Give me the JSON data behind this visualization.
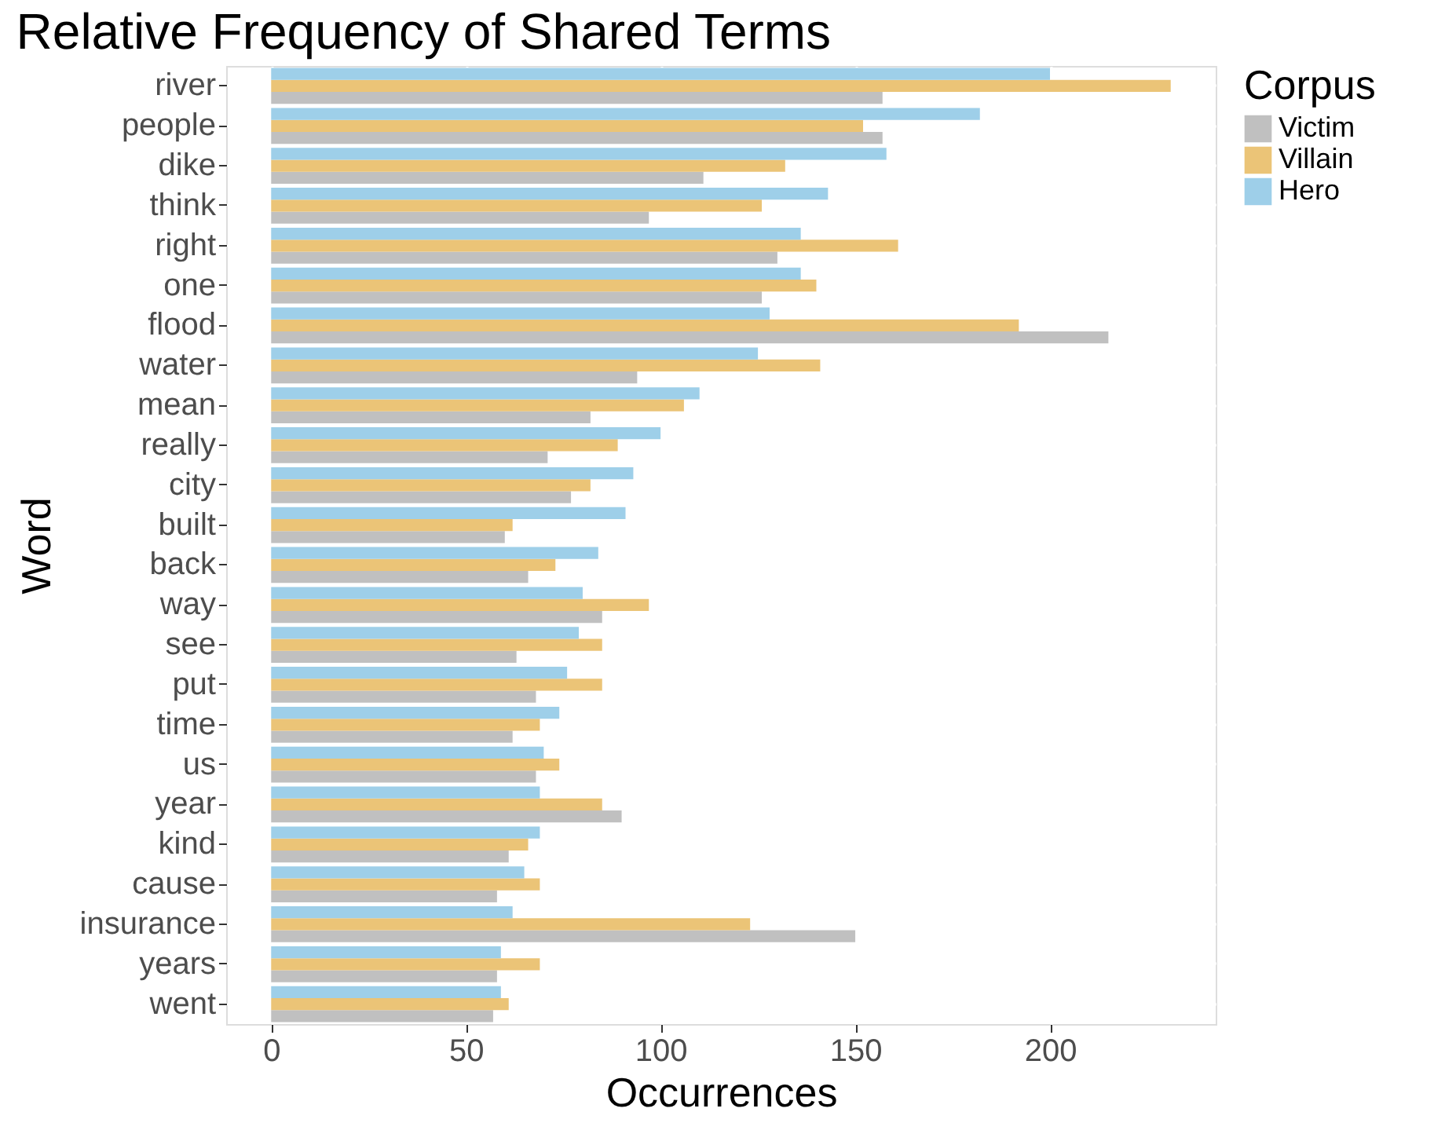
{
  "chart_data": {
    "type": "bar",
    "orientation": "horizontal",
    "title": "Relative Frequency of Shared Terms",
    "xlabel": "Occurrences",
    "ylabel": "Word",
    "legend_title": "Corpus",
    "legend": "right",
    "grid": true,
    "categories": [
      "river",
      "people",
      "dike",
      "think",
      "right",
      "one",
      "flood",
      "water",
      "mean",
      "really",
      "city",
      "built",
      "back",
      "way",
      "see",
      "put",
      "time",
      "us",
      "year",
      "kind",
      "cause",
      "insurance",
      "years",
      "went"
    ],
    "xlim": [
      -11.55,
      242.55
    ],
    "xticks": [
      0,
      50,
      100,
      150,
      200
    ],
    "series": [
      {
        "name": "Victim",
        "color": "#c0c0c0",
        "values": [
          157,
          157,
          111,
          97,
          130,
          126,
          215,
          94,
          82,
          71,
          77,
          60,
          66,
          85,
          63,
          68,
          62,
          68,
          90,
          61,
          58,
          150,
          58,
          57
        ]
      },
      {
        "name": "Villain",
        "color": "#ebc477",
        "values": [
          231,
          152,
          132,
          126,
          161,
          140,
          192,
          141,
          106,
          89,
          82,
          62,
          73,
          97,
          85,
          85,
          69,
          74,
          85,
          66,
          69,
          123,
          69,
          61
        ]
      },
      {
        "name": "Hero",
        "color": "#9ecfe9",
        "values": [
          200,
          182,
          158,
          143,
          136,
          136,
          128,
          125,
          110,
          100,
          93,
          91,
          84,
          80,
          79,
          76,
          74,
          70,
          69,
          69,
          65,
          62,
          59,
          59
        ]
      }
    ]
  }
}
